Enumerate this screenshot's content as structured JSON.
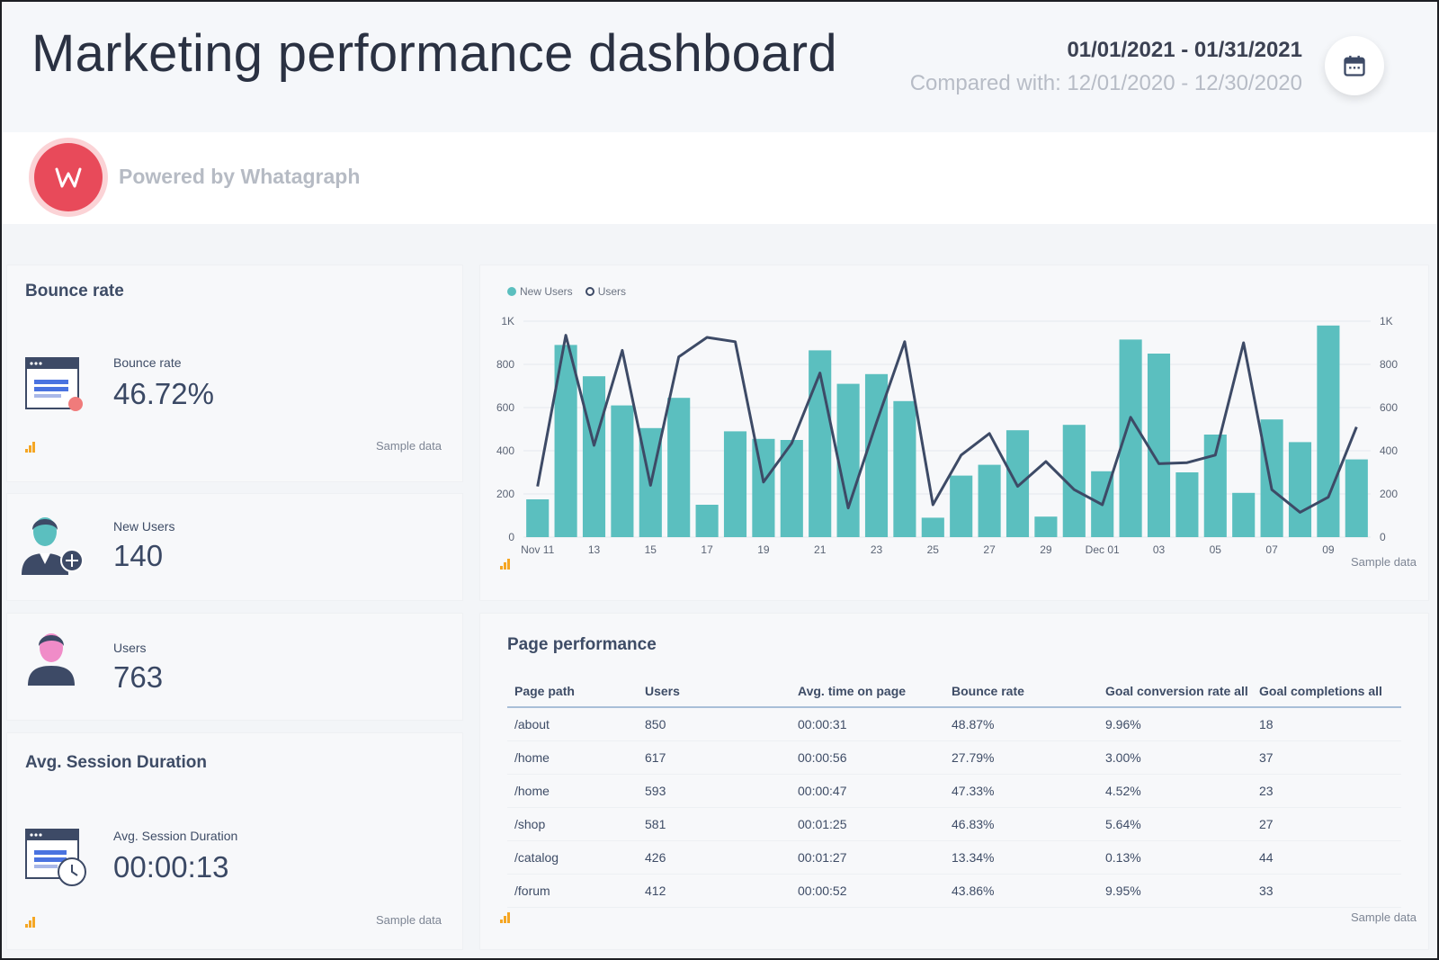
{
  "header": {
    "title": "Marketing performance dashboard",
    "date_range": "01/01/2021 - 01/31/2021",
    "compared_with": "Compared with: 12/01/2020 - 12/30/2020",
    "calendar_icon": "calendar-icon"
  },
  "brand": {
    "logo_letter": "W",
    "powered_by": "Powered by Whatagraph",
    "logo_color": "#e84a5a"
  },
  "bounce_card": {
    "title": "Bounce rate",
    "label": "Bounce rate",
    "value": "46.72%",
    "sample": "Sample data"
  },
  "new_users_card": {
    "label": "New Users",
    "value": "140"
  },
  "users_card": {
    "label": "Users",
    "value": "763"
  },
  "session_card": {
    "title": "Avg. Session Duration",
    "label": "Avg. Session Duration",
    "value": "00:00:13",
    "sample": "Sample data"
  },
  "chart_card": {
    "sample": "Sample data"
  },
  "chart_data": {
    "type": "bar",
    "legend_placement": "top-left",
    "grid": true,
    "colors": {
      "bars": "#5bbfbf",
      "line": "#3d4a66"
    },
    "categories": [
      "Nov 11",
      "12",
      "13",
      "14",
      "15",
      "16",
      "17",
      "18",
      "19",
      "20",
      "21",
      "22",
      "23",
      "24",
      "25",
      "26",
      "27",
      "28",
      "29",
      "30",
      "Dec 01",
      "02",
      "03",
      "04",
      "05",
      "06",
      "07",
      "08",
      "09",
      "10"
    ],
    "x_tick_labels": [
      "Nov 11",
      "13",
      "15",
      "17",
      "19",
      "21",
      "23",
      "25",
      "27",
      "29",
      "Dec 01",
      "03",
      "05",
      "07",
      "09"
    ],
    "y_ticks_left": [
      "0",
      "200",
      "400",
      "600",
      "800",
      "1K"
    ],
    "y_ticks_right": [
      "0",
      "200",
      "400",
      "600",
      "800",
      "1K"
    ],
    "ylim": [
      0,
      1000
    ],
    "series": [
      {
        "name": "New Users",
        "kind": "bar",
        "values": [
          175,
          890,
          745,
          610,
          505,
          645,
          150,
          490,
          455,
          450,
          865,
          710,
          755,
          630,
          90,
          285,
          335,
          495,
          95,
          520,
          305,
          915,
          850,
          300,
          475,
          205,
          545,
          440,
          980,
          360
        ]
      },
      {
        "name": "Users",
        "kind": "line",
        "values": [
          235,
          935,
          425,
          865,
          240,
          835,
          925,
          905,
          255,
          435,
          760,
          135,
          530,
          905,
          150,
          380,
          480,
          235,
          350,
          220,
          150,
          555,
          340,
          345,
          380,
          900,
          220,
          115,
          185,
          510
        ]
      }
    ]
  },
  "page_performance": {
    "title": "Page performance",
    "columns": [
      "Page path",
      "Users",
      "Avg. time on page",
      "Bounce rate",
      "Goal conversion rate all",
      "Goal completions all"
    ],
    "rows": [
      [
        "/about",
        "850",
        "00:00:31",
        "48.87%",
        "9.96%",
        "18"
      ],
      [
        "/home",
        "617",
        "00:00:56",
        "27.79%",
        "3.00%",
        "37"
      ],
      [
        "/home",
        "593",
        "00:00:47",
        "47.33%",
        "4.52%",
        "23"
      ],
      [
        "/shop",
        "581",
        "00:01:25",
        "46.83%",
        "5.64%",
        "27"
      ],
      [
        "/catalog",
        "426",
        "00:01:27",
        "13.34%",
        "0.13%",
        "44"
      ],
      [
        "/forum",
        "412",
        "00:00:52",
        "43.86%",
        "9.95%",
        "33"
      ]
    ],
    "sample": "Sample data"
  }
}
